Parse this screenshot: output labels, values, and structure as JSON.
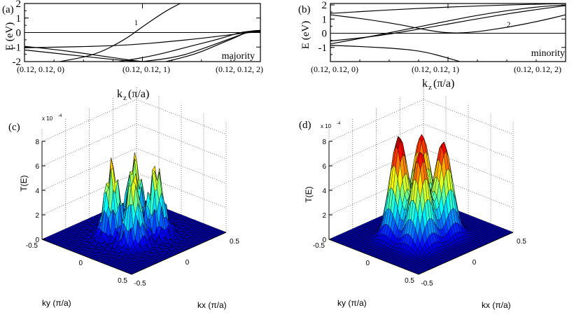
{
  "figure": {
    "title": "Band structures and transmission maps"
  },
  "chart_data": [
    {
      "id": "a",
      "type": "line",
      "panel_label": "(a)",
      "spin_label": "majority",
      "ylabel": "E (eV)",
      "xlabel_main": "k",
      "xlabel_sub": "z",
      "xlabel_unit": "(π/a)",
      "ylim": [
        -2,
        2
      ],
      "xlim": [
        0,
        2
      ],
      "yticks": [
        -2,
        -1,
        0,
        1,
        2
      ],
      "ytick_labels": [
        "-2",
        "-1",
        "0",
        "1",
        "2"
      ],
      "xtick_values": [
        0,
        1,
        2
      ],
      "xtick_labels": [
        "(0.12, 0.12, 0)",
        "(0.12, 0.12, 1)",
        "(0.12, 0.12, 2)"
      ],
      "fermi_level": 0,
      "band_annotation": {
        "text": "1",
        "x": 0.93,
        "y": 0.5
      },
      "series": [
        {
          "name": "band-1",
          "points": [
            [
              0.3,
              -2
            ],
            [
              0.6,
              -1.55
            ],
            [
              0.85,
              -0.5
            ],
            [
              1.0,
              0.4
            ],
            [
              1.2,
              1.5
            ],
            [
              1.32,
              2
            ]
          ]
        },
        {
          "name": "band-2",
          "points": [
            [
              0,
              -0.95
            ],
            [
              0.3,
              -1.2
            ],
            [
              0.6,
              -1.55
            ],
            [
              0.9,
              -1.9
            ],
            [
              1.0,
              -2
            ]
          ]
        },
        {
          "name": "band-3",
          "points": [
            [
              0,
              -1.05
            ],
            [
              0.3,
              -1.0
            ],
            [
              0.6,
              -0.95
            ],
            [
              0.9,
              -0.85
            ],
            [
              1.2,
              -0.65
            ],
            [
              1.5,
              -0.4
            ],
            [
              1.75,
              -0.15
            ],
            [
              1.9,
              0.0
            ],
            [
              2.0,
              0.05
            ]
          ]
        },
        {
          "name": "band-4",
          "points": [
            [
              0,
              -1.2
            ],
            [
              0.4,
              -1.55
            ],
            [
              0.8,
              -1.9
            ],
            [
              1.0,
              -2
            ]
          ]
        },
        {
          "name": "band-5",
          "points": [
            [
              0.8,
              -2
            ],
            [
              1.1,
              -1.6
            ],
            [
              1.4,
              -0.95
            ],
            [
              1.65,
              -0.45
            ],
            [
              1.8,
              -0.05
            ],
            [
              1.9,
              0.1
            ],
            [
              2.0,
              0.1
            ]
          ]
        },
        {
          "name": "band-6",
          "points": [
            [
              1.2,
              -2
            ],
            [
              1.45,
              -1.5
            ],
            [
              1.65,
              -0.8
            ],
            [
              1.8,
              -0.3
            ],
            [
              1.9,
              0.1
            ],
            [
              2.0,
              0.15
            ]
          ]
        },
        {
          "name": "band-7",
          "points": [
            [
              1.0,
              -2
            ],
            [
              1.3,
              -1.7
            ],
            [
              1.55,
              -1.0
            ],
            [
              1.75,
              -0.4
            ],
            [
              1.9,
              0.05
            ],
            [
              2.0,
              0.1
            ]
          ]
        }
      ]
    },
    {
      "id": "b",
      "type": "line",
      "panel_label": "(b)",
      "spin_label": "minority",
      "ylabel": "E (eV)",
      "xlabel_main": "k",
      "xlabel_sub": "z",
      "xlabel_unit": "(π/a)",
      "ylim": [
        -2,
        2.1
      ],
      "xlim": [
        0,
        2
      ],
      "yticks": [
        -1,
        0,
        1,
        2
      ],
      "ytick_labels": [
        "-1",
        "0",
        "1",
        "2"
      ],
      "xtick_values": [
        0,
        1,
        2
      ],
      "xtick_labels": [
        "(0.12, 0.12, 0)",
        "(0.12, 0.12, 1)",
        "(0.12, 0.12, 2)"
      ],
      "fermi_level": 0,
      "band_annotation": {
        "text": "2",
        "x": 1.5,
        "y": 0.45
      },
      "series": [
        {
          "name": "band-1",
          "points": [
            [
              0,
              1.3
            ],
            [
              0.3,
              1.0
            ],
            [
              0.6,
              0.6
            ],
            [
              0.8,
              0.25
            ],
            [
              1.0,
              0.0
            ],
            [
              1.2,
              0.05
            ],
            [
              1.5,
              0.4
            ],
            [
              1.8,
              0.9
            ],
            [
              2.0,
              1.3
            ]
          ]
        },
        {
          "name": "band-2",
          "points": [
            [
              0,
              -0.75
            ],
            [
              0.3,
              -0.3
            ],
            [
              0.6,
              0.2
            ],
            [
              0.9,
              0.7
            ],
            [
              1.2,
              1.2
            ],
            [
              1.5,
              1.6
            ],
            [
              1.8,
              1.9
            ],
            [
              2.0,
              2.0
            ]
          ]
        },
        {
          "name": "band-3",
          "points": [
            [
              0,
              -0.55
            ],
            [
              0.4,
              -0.2
            ],
            [
              0.8,
              0.35
            ],
            [
              1.2,
              0.95
            ],
            [
              1.6,
              1.5
            ],
            [
              2.0,
              1.95
            ]
          ]
        },
        {
          "name": "band-4",
          "points": [
            [
              0,
              1.4
            ],
            [
              0.5,
              1.65
            ],
            [
              1.0,
              1.85
            ],
            [
              1.5,
              2.0
            ],
            [
              2.0,
              2.1
            ]
          ]
        },
        {
          "name": "band-5",
          "points": [
            [
              0,
              -0.85
            ],
            [
              0.3,
              -0.95
            ],
            [
              0.6,
              -1.1
            ],
            [
              0.8,
              -1.3
            ],
            [
              1.0,
              -1.75
            ],
            [
              1.1,
              -2
            ]
          ]
        }
      ]
    },
    {
      "id": "c",
      "type": "surface",
      "panel_label": "(c)",
      "zlabel": "T(E)",
      "xlabel": "kx (π/a)",
      "ylabel": "ky (π/a)",
      "scale_label": "x 10",
      "scale_exponent": "-4",
      "zlim": [
        0,
        8
      ],
      "zticks": [
        0,
        2,
        4,
        6,
        8
      ],
      "ztick_labels": [
        "0",
        "2",
        "4",
        "6",
        "8"
      ],
      "kx_ticks": [
        "-0.5",
        "0",
        "0.5"
      ],
      "ky_ticks": [
        "-0.5",
        "0",
        "0.5"
      ],
      "peaks": [
        {
          "kx": 0.12,
          "ky": 0.12,
          "height": 6.2
        },
        {
          "kx": 0.12,
          "ky": -0.12,
          "height": 6.2
        },
        {
          "kx": -0.12,
          "ky": 0.12,
          "height": 6.6
        },
        {
          "kx": -0.12,
          "ky": -0.12,
          "height": 6.2
        }
      ],
      "spiky": true
    },
    {
      "id": "d",
      "type": "surface",
      "panel_label": "(d)",
      "zlabel": "T(E)",
      "xlabel": "kx (π/a)",
      "ylabel": "ky (π/a)",
      "scale_label": "x 10",
      "scale_exponent": "-4",
      "zlim": [
        0,
        8
      ],
      "zticks": [
        0,
        2,
        4,
        6,
        8
      ],
      "ztick_labels": [
        "0",
        "2",
        "4",
        "6",
        "8"
      ],
      "kx_ticks": [
        "-0.5",
        "0",
        "0.5"
      ],
      "ky_ticks": [
        "-0.5",
        "0",
        "0.5"
      ],
      "peaks": [
        {
          "kx": 0.12,
          "ky": 0.12,
          "height": 7.5
        },
        {
          "kx": 0.12,
          "ky": -0.12,
          "height": 7.6
        },
        {
          "kx": -0.12,
          "ky": 0.12,
          "height": 8.2
        },
        {
          "kx": -0.12,
          "ky": -0.12,
          "height": 7.6
        }
      ],
      "spiky": false
    }
  ]
}
